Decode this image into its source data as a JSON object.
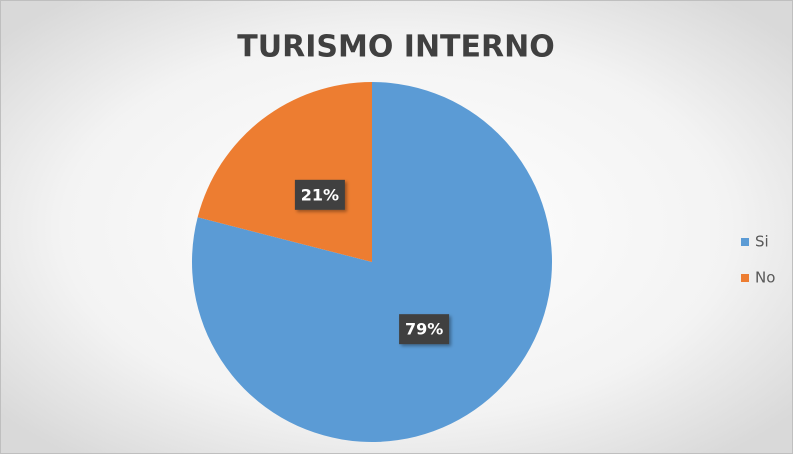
{
  "chart_data": {
    "type": "pie",
    "title": "TURISMO INTERNO",
    "categories": [
      "Si",
      "No"
    ],
    "values": [
      79,
      21
    ],
    "value_labels": [
      "79%",
      "21%"
    ],
    "colors": [
      "#5b9bd5",
      "#ed7d31"
    ],
    "legend": "right"
  }
}
